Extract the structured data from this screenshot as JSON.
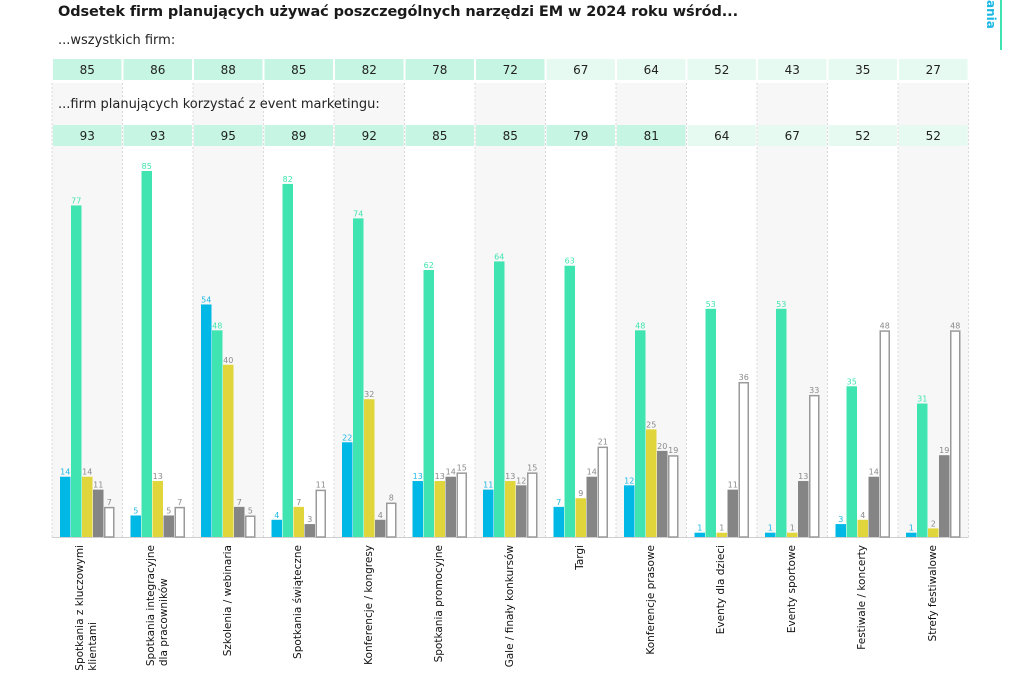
{
  "page": {
    "title": "Odsetek firm planujących używać poszczególnych narzędzi EM w 2024 roku wśród...",
    "subtitle_all": "...wszystkich firm:",
    "subtitle_em": "...firm planujących korzystać z event marketingu:",
    "side_tab_text": "ania"
  },
  "colors": {
    "cyan": "#00b8e6",
    "green": "#40e4b0",
    "yellow": "#e0d63c",
    "gray": "#858585",
    "outline": "#9a9a9a",
    "header_strong": "#c6f5e4",
    "header_light": "#e6faf2"
  },
  "chart_data": {
    "type": "bar",
    "title": "Odsetek firm planujących używać poszczególnych narzędzi EM w 2024 roku wśród...",
    "categories": [
      "Spotkania z kluczowymi\nklientami",
      "Spotkania integracyjne\ndla pracowników",
      "Szkolenia / webinaria",
      "Spotkania świąteczne",
      "Konferencje / kongresy",
      "Spotkania promocyjne",
      "Gale / finały konkursów",
      "Targi",
      "Konferencje prasowe",
      "Eventy dla dzieci",
      "Eventy sportowe",
      "Festiwale / koncerty",
      "Strefy festiwalowe"
    ],
    "header_rows": [
      {
        "label": "...wszystkich firm:",
        "values": [
          85,
          86,
          88,
          85,
          82,
          78,
          72,
          67,
          64,
          52,
          43,
          35,
          27
        ]
      },
      {
        "label": "...firm planujących korzystać z event marketingu:",
        "values": [
          93,
          93,
          95,
          89,
          92,
          85,
          85,
          79,
          81,
          64,
          67,
          52,
          52
        ]
      }
    ],
    "series": [
      {
        "name": "series-1",
        "color": "#00b8e6",
        "values": [
          14,
          5,
          54,
          4,
          22,
          13,
          11,
          7,
          12,
          1,
          1,
          3,
          1
        ]
      },
      {
        "name": "series-2",
        "color": "#40e4b0",
        "values": [
          77,
          85,
          48,
          82,
          74,
          62,
          64,
          63,
          48,
          53,
          53,
          35,
          31
        ]
      },
      {
        "name": "series-3",
        "color": "#e0d63c",
        "values": [
          14,
          13,
          40,
          7,
          32,
          13,
          13,
          9,
          25,
          1,
          1,
          4,
          2
        ]
      },
      {
        "name": "series-4",
        "color": "#858585",
        "values": [
          11,
          5,
          7,
          3,
          4,
          14,
          12,
          14,
          20,
          11,
          13,
          14,
          19
        ]
      },
      {
        "name": "series-5",
        "color": "#ffffff",
        "outline": true,
        "values": [
          7,
          7,
          5,
          11,
          8,
          15,
          15,
          21,
          19,
          36,
          33,
          48,
          48
        ]
      }
    ],
    "ylim": [
      0,
      85
    ],
    "xlabel": "",
    "ylabel": "",
    "grid": false,
    "legend": "none"
  }
}
